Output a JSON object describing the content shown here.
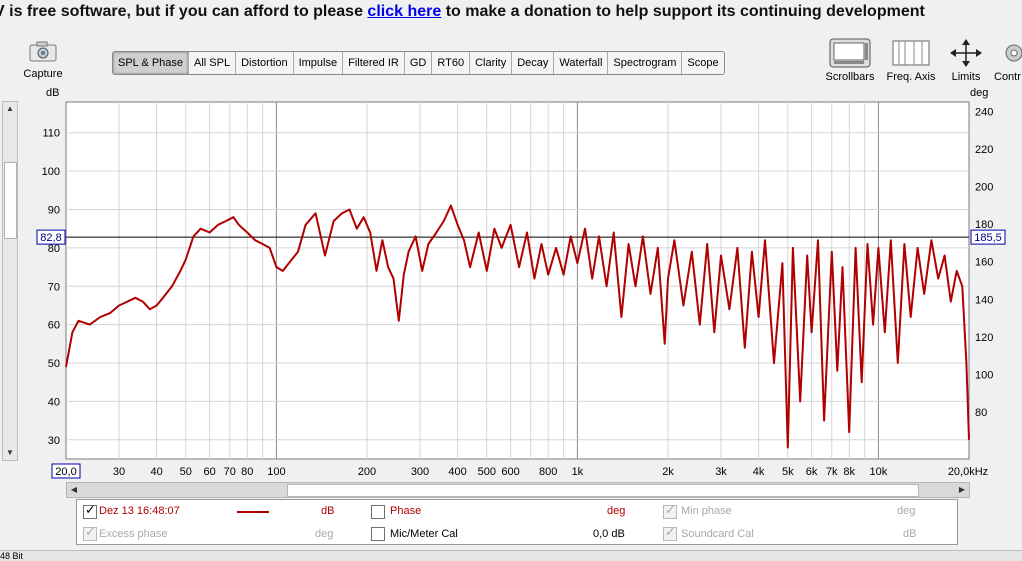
{
  "banner": {
    "lead": "V is free software, but if you can afford to please",
    "link": "click here",
    "trail": "to make a donation to help support its continuing development"
  },
  "toolbar": {
    "capture_label": "Capture",
    "tabs": [
      "SPL & Phase",
      "All SPL",
      "Distortion",
      "Impulse",
      "Filtered IR",
      "GD",
      "RT60",
      "Clarity",
      "Decay",
      "Waterfall",
      "Spectrogram",
      "Scope"
    ],
    "active_tab": "SPL & Phase",
    "scrollbars_label": "Scrollbars",
    "freq_axis_label": "Freq. Axis",
    "limits_label": "Limits",
    "controls_label": "Contr"
  },
  "axes": {
    "left_unit": "dB",
    "right_unit": "deg",
    "y_left_ticks": [
      "110",
      "100",
      "90",
      "80",
      "70",
      "60",
      "50",
      "40",
      "30"
    ],
    "y_right_ticks": [
      "240",
      "220",
      "200",
      "180",
      "160",
      "140",
      "120",
      "100",
      "80"
    ],
    "x_ticks": [
      "30",
      "40",
      "50",
      "60",
      "70",
      "80",
      "100",
      "200",
      "300",
      "400",
      "500",
      "600",
      "800",
      "1k",
      "2k",
      "3k",
      "4k",
      "5k",
      "6k",
      "7k",
      "8k",
      "10k"
    ],
    "x_start_label": "20,0",
    "x_end_label": "20,0kHz",
    "cursor_left_value": "82,8",
    "cursor_right_value": "185,5"
  },
  "chart_data": {
    "type": "line",
    "xscale": "log",
    "xlim": [
      20,
      20000
    ],
    "ylim": [
      25,
      118
    ],
    "y2lim": [
      55,
      245
    ],
    "cursor_db": 82.8,
    "cursor_deg": 185.5,
    "series": [
      {
        "name": "Dez 13 16:48:07",
        "color": "#b00000",
        "x": [
          20,
          21,
          22,
          24,
          26,
          28,
          30,
          32,
          34,
          36,
          38,
          40,
          42,
          45,
          48,
          50,
          53,
          56,
          60,
          64,
          68,
          72,
          75,
          80,
          85,
          90,
          95,
          100,
          105,
          110,
          118,
          125,
          135,
          145,
          155,
          165,
          175,
          185,
          195,
          205,
          215,
          225,
          235,
          245,
          255,
          265,
          275,
          290,
          305,
          320,
          340,
          360,
          380,
          400,
          420,
          440,
          470,
          500,
          530,
          560,
          600,
          640,
          680,
          720,
          760,
          800,
          850,
          900,
          950,
          1000,
          1060,
          1120,
          1180,
          1250,
          1320,
          1400,
          1480,
          1560,
          1650,
          1750,
          1850,
          1950,
          2000,
          2100,
          2250,
          2400,
          2550,
          2700,
          2850,
          3000,
          3200,
          3400,
          3600,
          3800,
          4000,
          4200,
          4500,
          4800,
          5000,
          5200,
          5500,
          5800,
          6000,
          6300,
          6600,
          7000,
          7300,
          7600,
          8000,
          8400,
          8800,
          9200,
          9600,
          10000,
          10500,
          11000,
          11600,
          12200,
          12800,
          13500,
          14200,
          15000,
          15800,
          16600,
          17400,
          18200,
          19000,
          19600,
          20000
        ],
        "values": [
          49,
          58,
          61,
          60,
          62,
          63,
          65,
          66,
          67,
          66,
          64,
          65,
          67,
          70,
          74,
          77,
          83,
          85,
          84,
          86,
          87,
          88,
          86,
          84,
          82,
          81,
          80,
          75,
          74,
          76,
          79,
          86,
          89,
          78,
          87,
          89,
          90,
          85,
          88,
          84,
          74,
          82,
          75,
          72,
          61,
          73,
          79,
          83,
          74,
          81,
          84,
          87,
          91,
          86,
          82,
          75,
          84,
          74,
          85,
          80,
          86,
          75,
          84,
          72,
          81,
          73,
          80,
          73,
          83,
          76,
          85,
          72,
          83,
          70,
          84,
          62,
          81,
          70,
          83,
          68,
          80,
          55,
          72,
          82,
          65,
          79,
          60,
          81,
          58,
          78,
          64,
          80,
          54,
          79,
          62,
          82,
          50,
          76,
          28,
          80,
          40,
          78,
          58,
          82,
          35,
          79,
          48,
          75,
          32,
          80,
          45,
          81,
          60,
          80,
          58,
          82,
          50,
          81,
          62,
          80,
          68,
          82,
          72,
          78,
          66,
          74,
          70,
          50,
          30
        ]
      }
    ]
  },
  "legend": {
    "row1": {
      "trace_label": "Dez 13 16:48:07",
      "trace_unit": "dB",
      "phase_label": "Phase",
      "phase_unit": "deg",
      "min_phase_label": "Min phase",
      "min_phase_unit": "deg"
    },
    "row2": {
      "excess_phase_label": "Excess phase",
      "excess_phase_unit": "deg",
      "mic_cal_label": "Mic/Meter Cal",
      "mic_cal_value": "0,0 dB",
      "soundcard_cal_label": "Soundcard Cal",
      "soundcard_cal_unit": "dB"
    }
  },
  "status": {
    "text": "48 Bit"
  }
}
